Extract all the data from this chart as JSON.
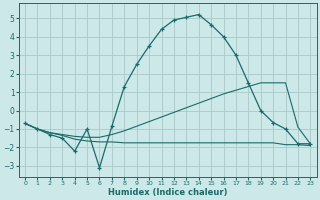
{
  "background_color": "#cce8e8",
  "grid_color": "#aac8c8",
  "line_color": "#1a6b6b",
  "xlabel": "Humidex (Indice chaleur)",
  "xlim": [
    -0.5,
    23.5
  ],
  "ylim": [
    -3.6,
    5.8
  ],
  "yticks": [
    -3,
    -2,
    -1,
    0,
    1,
    2,
    3,
    4,
    5
  ],
  "xticks": [
    0,
    1,
    2,
    3,
    4,
    5,
    6,
    7,
    8,
    9,
    10,
    11,
    12,
    13,
    14,
    15,
    16,
    17,
    18,
    19,
    20,
    21,
    22,
    23
  ],
  "line1_x": [
    0,
    1,
    2,
    3,
    4,
    5,
    6,
    7,
    8,
    9,
    10,
    11,
    12,
    13,
    14,
    15,
    16,
    17,
    18,
    19,
    20,
    21,
    22,
    23
  ],
  "line1_y": [
    -0.7,
    -1.0,
    -1.3,
    -1.5,
    -2.2,
    -1.0,
    -3.1,
    -0.85,
    1.3,
    2.5,
    3.5,
    4.4,
    4.9,
    5.05,
    5.2,
    4.65,
    4.0,
    3.0,
    1.5,
    0.0,
    -0.65,
    -1.0,
    -1.8,
    -1.8
  ],
  "line2_x": [
    0,
    1,
    2,
    3,
    4,
    5,
    6,
    7,
    8,
    9,
    10,
    11,
    12,
    13,
    14,
    15,
    16,
    17,
    18,
    19,
    20,
    21,
    22,
    23
  ],
  "line2_y": [
    -0.7,
    -1.0,
    -1.2,
    -1.3,
    -1.4,
    -1.45,
    -1.45,
    -1.3,
    -1.1,
    -0.85,
    -0.6,
    -0.35,
    -0.1,
    0.15,
    0.4,
    0.65,
    0.9,
    1.1,
    1.3,
    1.5,
    1.5,
    1.5,
    -0.9,
    -1.8
  ],
  "line3_x": [
    0,
    1,
    2,
    3,
    4,
    5,
    6,
    7,
    8,
    9,
    10,
    11,
    12,
    13,
    14,
    15,
    16,
    17,
    18,
    19,
    20,
    21,
    22,
    23
  ],
  "line3_y": [
    -0.7,
    -1.0,
    -1.2,
    -1.35,
    -1.55,
    -1.65,
    -1.7,
    -1.7,
    -1.75,
    -1.75,
    -1.75,
    -1.75,
    -1.75,
    -1.75,
    -1.75,
    -1.75,
    -1.75,
    -1.75,
    -1.75,
    -1.75,
    -1.75,
    -1.85,
    -1.85,
    -1.9
  ]
}
